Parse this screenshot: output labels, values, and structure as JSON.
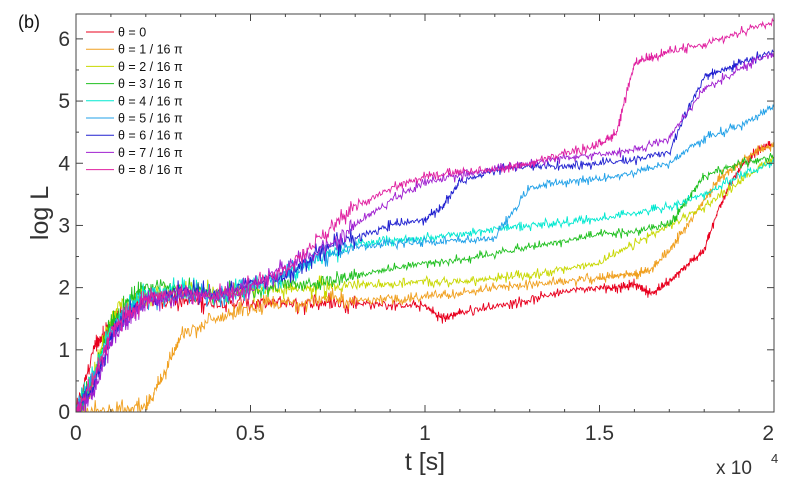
{
  "chart_data": {
    "type": "line",
    "panel_label": "(b)",
    "xlabel": "t [s]",
    "ylabel": "log L",
    "x_exponent_label": "x 10",
    "x_exponent_power": "4",
    "xlim": [
      0,
      2
    ],
    "ylim": [
      0,
      6.4
    ],
    "x_ticks": [
      "0",
      "0.5",
      "1",
      "1.5",
      "2"
    ],
    "y_ticks": [
      "0",
      "1",
      "2",
      "3",
      "4",
      "5",
      "6"
    ],
    "x_tick_values": [
      0,
      0.5,
      1,
      1.5,
      2
    ],
    "y_tick_values": [
      0,
      1,
      2,
      3,
      4,
      5,
      6
    ],
    "legend_position": "top-left",
    "grid": false,
    "series": [
      {
        "name": "θ = 0",
        "color": "#e8001e",
        "x": [
          0,
          0.05,
          0.08,
          0.12,
          0.2,
          0.3,
          0.4,
          0.5,
          0.6,
          0.7,
          0.8,
          0.9,
          1.0,
          1.05,
          1.1,
          1.2,
          1.3,
          1.4,
          1.5,
          1.55,
          1.6,
          1.65,
          1.7,
          1.75,
          1.8,
          1.85,
          1.9,
          1.95,
          2.0
        ],
        "y": [
          0,
          1.0,
          1.25,
          1.5,
          1.85,
          1.8,
          1.75,
          1.75,
          1.75,
          1.75,
          1.75,
          1.72,
          1.7,
          1.5,
          1.6,
          1.7,
          1.8,
          1.95,
          2.0,
          2.0,
          2.05,
          1.9,
          2.1,
          2.35,
          2.6,
          3.4,
          3.9,
          4.2,
          4.3
        ]
      },
      {
        "name": "θ = 1 / 16 π",
        "color": "#f0a020",
        "x": [
          0,
          0.1,
          0.2,
          0.25,
          0.3,
          0.4,
          0.5,
          0.6,
          0.7,
          0.8,
          0.9,
          1.0,
          1.1,
          1.2,
          1.3,
          1.4,
          1.5,
          1.55,
          1.6,
          1.65,
          1.7,
          1.75,
          1.8,
          1.85,
          1.9,
          1.95,
          2.0
        ],
        "y": [
          0,
          0,
          0.05,
          0.6,
          1.2,
          1.5,
          1.65,
          1.75,
          1.8,
          1.8,
          1.8,
          1.85,
          1.9,
          2.0,
          2.05,
          2.1,
          2.15,
          2.2,
          2.2,
          2.3,
          2.6,
          3.0,
          3.4,
          3.8,
          4.0,
          4.2,
          4.3
        ]
      },
      {
        "name": "θ = 2 / 16 π",
        "color": "#c8d800",
        "x": [
          0,
          0.04,
          0.08,
          0.12,
          0.2,
          0.3,
          0.4,
          0.5,
          0.6,
          0.7,
          0.8,
          0.9,
          1.0,
          1.1,
          1.2,
          1.3,
          1.4,
          1.5,
          1.6,
          1.7,
          1.8,
          1.9,
          2.0
        ],
        "y": [
          0,
          0.3,
          1.2,
          1.7,
          1.9,
          1.9,
          1.95,
          1.95,
          2.0,
          2.0,
          2.05,
          2.05,
          2.1,
          2.1,
          2.15,
          2.2,
          2.3,
          2.4,
          2.7,
          3.0,
          3.3,
          3.7,
          4.1
        ]
      },
      {
        "name": "θ = 3 / 16 π",
        "color": "#20c020",
        "x": [
          0,
          0.05,
          0.1,
          0.15,
          0.2,
          0.3,
          0.4,
          0.5,
          0.6,
          0.7,
          0.8,
          0.9,
          1.0,
          1.1,
          1.2,
          1.3,
          1.4,
          1.5,
          1.6,
          1.7,
          1.75,
          1.8,
          1.9,
          2.0
        ],
        "y": [
          0,
          0.5,
          1.4,
          1.8,
          2.0,
          2.0,
          1.9,
          1.95,
          2.05,
          2.1,
          2.2,
          2.3,
          2.4,
          2.45,
          2.55,
          2.65,
          2.75,
          2.85,
          2.9,
          3.0,
          3.4,
          3.8,
          4.0,
          4.1
        ]
      },
      {
        "name": "θ = 4 / 16 π",
        "color": "#00e8d0",
        "x": [
          0,
          0.05,
          0.1,
          0.15,
          0.2,
          0.3,
          0.4,
          0.5,
          0.6,
          0.7,
          0.8,
          0.9,
          1.0,
          1.1,
          1.2,
          1.3,
          1.4,
          1.5,
          1.6,
          1.7,
          1.8,
          1.9,
          2.0
        ],
        "y": [
          0,
          0.6,
          1.3,
          1.7,
          1.9,
          2.0,
          1.9,
          2.0,
          2.2,
          2.5,
          2.7,
          2.75,
          2.8,
          2.85,
          2.95,
          3.0,
          3.05,
          3.1,
          3.2,
          3.3,
          3.5,
          3.8,
          4.0
        ]
      },
      {
        "name": "θ = 5 / 16 π",
        "color": "#20a0e8",
        "x": [
          0,
          0.05,
          0.1,
          0.15,
          0.2,
          0.3,
          0.4,
          0.5,
          0.6,
          0.7,
          0.8,
          0.9,
          1.0,
          1.1,
          1.2,
          1.3,
          1.4,
          1.5,
          1.6,
          1.7,
          1.8,
          1.9,
          2.0
        ],
        "y": [
          0,
          0.5,
          1.2,
          1.6,
          1.8,
          1.9,
          1.85,
          2.0,
          2.2,
          2.5,
          2.65,
          2.7,
          2.75,
          2.75,
          2.8,
          3.6,
          3.7,
          3.75,
          3.85,
          4.0,
          4.4,
          4.6,
          4.9
        ]
      },
      {
        "name": "θ = 6 / 16 π",
        "color": "#2020d0",
        "x": [
          0,
          0.05,
          0.1,
          0.15,
          0.2,
          0.3,
          0.4,
          0.5,
          0.6,
          0.7,
          0.8,
          0.9,
          1.0,
          1.05,
          1.1,
          1.2,
          1.3,
          1.4,
          1.5,
          1.6,
          1.7,
          1.8,
          1.85,
          1.9,
          2.0
        ],
        "y": [
          0,
          0.4,
          1.2,
          1.6,
          1.8,
          1.95,
          1.9,
          2.05,
          2.2,
          2.6,
          2.8,
          3.0,
          3.1,
          3.3,
          3.7,
          3.9,
          3.95,
          3.95,
          4.0,
          4.05,
          4.2,
          5.4,
          5.5,
          5.6,
          5.8
        ]
      },
      {
        "name": "θ = 7 / 16 π",
        "color": "#a020d0",
        "x": [
          0,
          0.05,
          0.1,
          0.15,
          0.2,
          0.3,
          0.4,
          0.5,
          0.6,
          0.7,
          0.8,
          0.9,
          1.0,
          1.1,
          1.2,
          1.3,
          1.4,
          1.5,
          1.6,
          1.7,
          1.8,
          1.9,
          2.0
        ],
        "y": [
          0,
          0.3,
          1.1,
          1.5,
          1.75,
          1.9,
          1.85,
          2.0,
          2.3,
          2.6,
          3.0,
          3.4,
          3.7,
          3.8,
          3.9,
          4.0,
          4.1,
          4.15,
          4.2,
          4.4,
          5.2,
          5.5,
          5.8
        ]
      },
      {
        "name": "θ = 8 / 16 π",
        "color": "#e020a0",
        "x": [
          0,
          0.05,
          0.1,
          0.15,
          0.2,
          0.3,
          0.4,
          0.5,
          0.6,
          0.7,
          0.8,
          0.9,
          1.0,
          1.1,
          1.2,
          1.3,
          1.4,
          1.5,
          1.55,
          1.6,
          1.65,
          1.7,
          1.8,
          1.9,
          2.0
        ],
        "y": [
          0,
          0.5,
          1.3,
          1.6,
          1.8,
          1.95,
          1.85,
          2.05,
          2.3,
          2.8,
          3.3,
          3.6,
          3.8,
          3.85,
          3.9,
          4.0,
          4.15,
          4.3,
          4.5,
          5.6,
          5.7,
          5.8,
          5.9,
          6.1,
          6.3
        ]
      }
    ]
  }
}
